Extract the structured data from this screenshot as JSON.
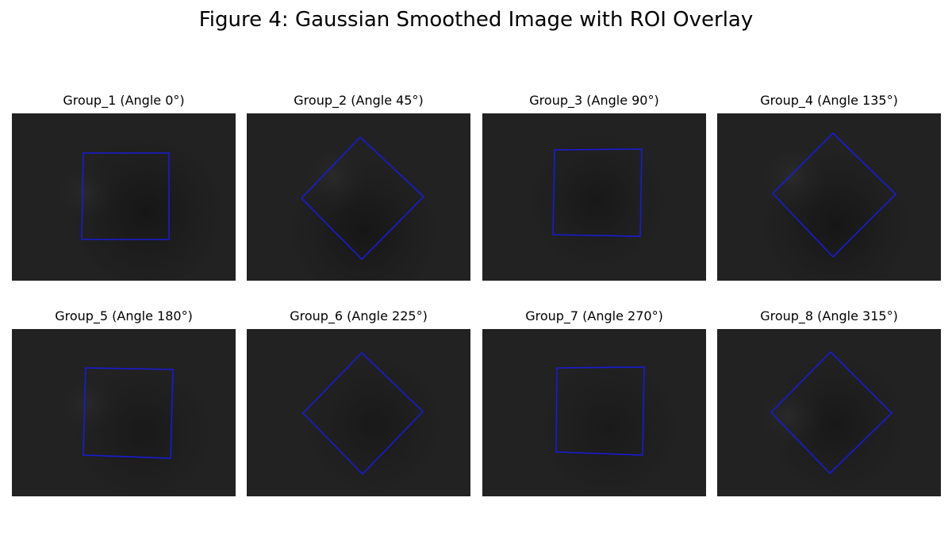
{
  "figure": {
    "title": "Figure 4: Gaussian Smoothed Image with ROI Overlay"
  },
  "colors": {
    "background": "#222222",
    "roi_outline": "#1a1ad6",
    "dark_spot": "#161616",
    "light_edge": "#2c2c2c"
  },
  "panels": [
    {
      "title": "Group_1 (Angle 0°)",
      "angle": 0
    },
    {
      "title": "Group_2 (Angle 45°)",
      "angle": 45
    },
    {
      "title": "Group_3 (Angle 90°)",
      "angle": 90
    },
    {
      "title": "Group_4 (Angle 135°)",
      "angle": 135
    },
    {
      "title": "Group_5 (Angle 180°)",
      "angle": 180
    },
    {
      "title": "Group_6 (Angle 225°)",
      "angle": 225
    },
    {
      "title": "Group_7 (Angle 270°)",
      "angle": 270
    },
    {
      "title": "Group_8 (Angle 315°)",
      "angle": 315
    }
  ]
}
